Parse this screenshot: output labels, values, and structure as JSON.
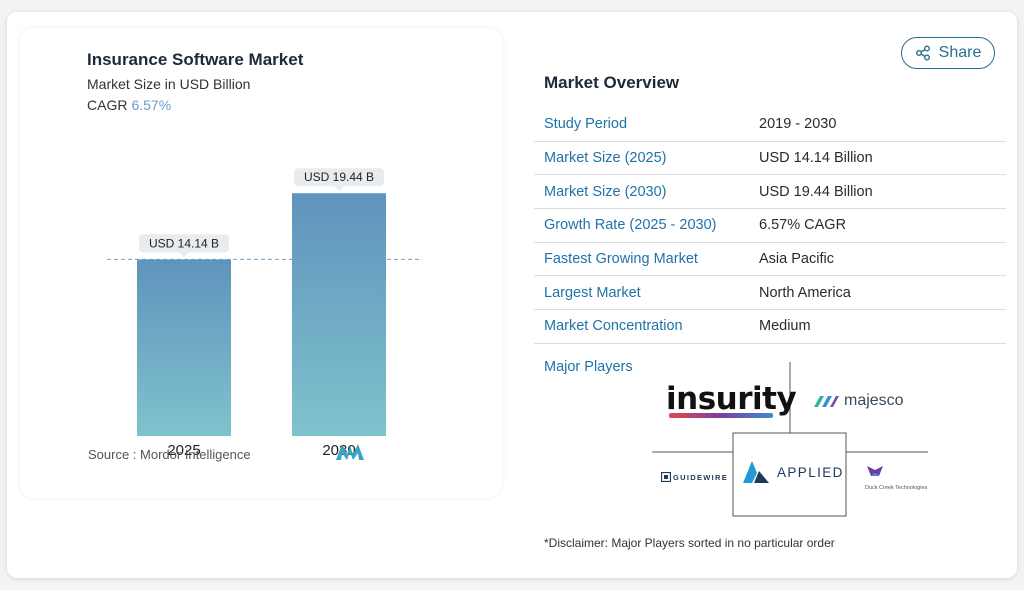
{
  "chart": {
    "title": "Insurance Software Market",
    "subtitle": "Market Size in USD Billion",
    "cagr_label": "CAGR",
    "cagr_value": "6.57%",
    "source": "Source :  Mordor Intelligence"
  },
  "chart_data": {
    "type": "bar",
    "title": "Insurance Software Market",
    "subtitle": "Market Size in USD Billion",
    "categories": [
      "2025",
      "2030"
    ],
    "values": [
      14.14,
      19.44
    ],
    "data_labels": [
      "USD 14.14 B",
      "USD 19.44 B"
    ],
    "xlabel": "",
    "ylabel": "",
    "ylim": [
      0,
      23.3
    ],
    "grid": false,
    "legend": "none",
    "reference_line": 14.14,
    "bar_color_top": "#5f93bd",
    "bar_color_bottom": "#7fc3cd"
  },
  "share": {
    "label": "Share"
  },
  "overview": {
    "title": "Market Overview",
    "rows": [
      {
        "key": "Study Period",
        "value": "2019 - 2030"
      },
      {
        "key": "Market Size (2025)",
        "value": "USD 14.14 Billion"
      },
      {
        "key": "Market Size (2030)",
        "value": "USD 19.44 Billion"
      },
      {
        "key": "Growth Rate (2025 - 2030)",
        "value": "6.57% CAGR"
      },
      {
        "key": "Fastest Growing Market",
        "value": "Asia Pacific"
      },
      {
        "key": "Largest Market",
        "value": "North America"
      },
      {
        "key": "Market Concentration",
        "value": "Medium"
      }
    ]
  },
  "players": {
    "label": "Major Players",
    "insurity": "insurity",
    "majesco": "majesco",
    "guidewire": "GUIDEWIRE",
    "applied": "APPLIED",
    "duckcreek": "Duck Creek Technologies"
  },
  "disclaimer": "*Disclaimer: Major Players sorted in no particular order",
  "colors": {
    "link": "#1f73a7",
    "accent": "#6a9bc7",
    "share_border": "#2a6f8f"
  }
}
